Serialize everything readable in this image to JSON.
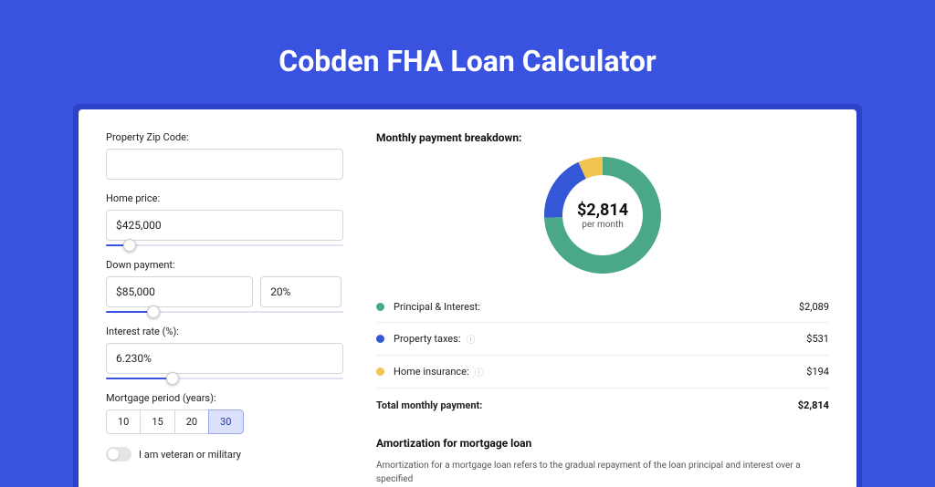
{
  "page": {
    "title": "Cobden FHA Loan Calculator",
    "colors": {
      "bg": "#3953e0",
      "card_bg": "#ffffff",
      "shadow_bg": "#2c43c9",
      "accent": "#3953e0"
    }
  },
  "form": {
    "zip": {
      "label": "Property Zip Code:",
      "value": ""
    },
    "price": {
      "label": "Home price:",
      "value": "$425,000",
      "slider_pct": 10
    },
    "down": {
      "label": "Down payment:",
      "value": "$85,000",
      "pct_value": "20%",
      "slider_pct": 20
    },
    "rate": {
      "label": "Interest rate (%):",
      "value": "6.230%",
      "slider_pct": 28
    },
    "period": {
      "label": "Mortgage period (years):",
      "options": [
        "10",
        "15",
        "20",
        "30"
      ],
      "active": "30"
    },
    "veteran": {
      "label": "I am veteran or military",
      "checked": false
    }
  },
  "breakdown": {
    "title": "Monthly payment breakdown:",
    "center_amount": "$2,814",
    "center_sub": "per month",
    "chart": {
      "type": "donut",
      "slices": [
        {
          "key": "pi",
          "pct": 74.2,
          "color": "#4aa887"
        },
        {
          "key": "tax",
          "pct": 18.9,
          "color": "#3357d6"
        },
        {
          "key": "ins",
          "pct": 6.9,
          "color": "#f2c451"
        }
      ],
      "stroke_width": 20,
      "radius": 54,
      "bg": "#ffffff"
    },
    "rows": [
      {
        "dot": "#4aa887",
        "label": "Principal & Interest:",
        "info": false,
        "value": "$2,089"
      },
      {
        "dot": "#3357d6",
        "label": "Property taxes:",
        "info": true,
        "value": "$531"
      },
      {
        "dot": "#f2c451",
        "label": "Home insurance:",
        "info": true,
        "value": "$194"
      }
    ],
    "total": {
      "label": "Total monthly payment:",
      "value": "$2,814"
    }
  },
  "amortization": {
    "title": "Amortization for mortgage loan",
    "text": "Amortization for a mortgage loan refers to the gradual repayment of the loan principal and interest over a specified"
  }
}
